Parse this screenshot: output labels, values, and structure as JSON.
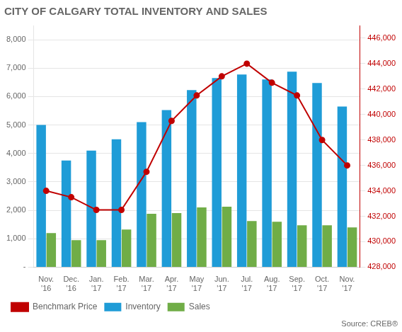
{
  "chart_data": {
    "type": "bar",
    "title": "CITY OF CALGARY TOTAL INVENTORY AND SALES",
    "annotations": [
      "Source: CREB®"
    ],
    "categories": [
      "Nov.\n'16",
      "Dec.\n'16",
      "Jan.\n'17",
      "Feb.\n'17",
      "Mar.\n'17",
      "Apr.\n'17",
      "May\n'17",
      "Jun.\n'17",
      "Jul.\n'17",
      "Aug.\n'17",
      "Sep.\n'17",
      "Oct.\n'17",
      "Nov.\n'17"
    ],
    "series": [
      {
        "name": "Inventory",
        "type": "bar",
        "color": "#1F9CD7",
        "values": [
          5000,
          3750,
          4100,
          4500,
          5100,
          5525,
          6225,
          6650,
          6775,
          6600,
          6875,
          6475,
          5650
        ]
      },
      {
        "name": "Sales",
        "type": "bar",
        "color": "#70AD47",
        "values": [
          1200,
          950,
          950,
          1325,
          1875,
          1900,
          2100,
          2125,
          1625,
          1600,
          1475,
          1475,
          1400
        ]
      },
      {
        "name": "Benchmark Price",
        "type": "line",
        "axis": "y2",
        "color": "#C00000",
        "marker": "circle",
        "line_style": "solid",
        "values": [
          434000,
          433500,
          432500,
          432500,
          435500,
          439500,
          441500,
          443000,
          444000,
          442500,
          441500,
          438000,
          436000
        ]
      }
    ],
    "ylim": [
      0,
      8500
    ],
    "yticks": [
      {
        "value": 0,
        "label": "-"
      },
      {
        "value": 1000,
        "label": "1,000"
      },
      {
        "value": 2000,
        "label": "2,000"
      },
      {
        "value": 3000,
        "label": "3,000"
      },
      {
        "value": 4000,
        "label": "4,000"
      },
      {
        "value": 5000,
        "label": "5,000"
      },
      {
        "value": 6000,
        "label": "6,000"
      },
      {
        "value": 7000,
        "label": "7,000"
      },
      {
        "value": 8000,
        "label": "8,000"
      }
    ],
    "y2lim": [
      428000,
      447000
    ],
    "y2ticks": [
      {
        "value": 428000,
        "label": "428,000"
      },
      {
        "value": 430000,
        "label": "430,000"
      },
      {
        "value": 432000,
        "label": "432,000"
      },
      {
        "value": 434000,
        "label": "434,000"
      },
      {
        "value": 436000,
        "label": "436,000"
      },
      {
        "value": 438000,
        "label": "438,000"
      },
      {
        "value": 440000,
        "label": "440,000"
      },
      {
        "value": 442000,
        "label": "442,000"
      },
      {
        "value": 444000,
        "label": "444,000"
      },
      {
        "value": 446000,
        "label": "446,000"
      }
    ],
    "grid": true,
    "legend": "bottom"
  }
}
